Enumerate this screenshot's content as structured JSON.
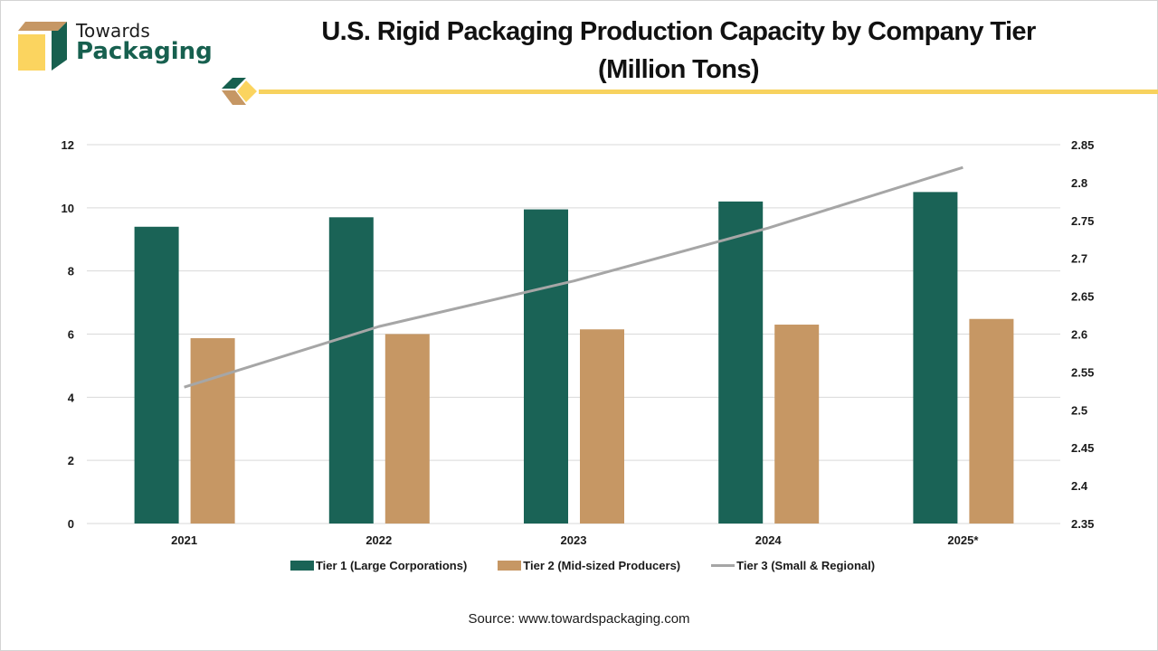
{
  "brand": {
    "name_top": "Towards",
    "name_bottom": "Packaging",
    "colors": {
      "green": "#17604f",
      "tan": "#c69764",
      "yellow": "#f7d25e"
    }
  },
  "source_text": "Source: www.towardspackaging.com",
  "chart_data": {
    "type": "bar",
    "title": "U.S. Rigid Packaging Production Capacity by Company Tier",
    "subtitle": "(Million Tons)",
    "categories": [
      "2021",
      "2022",
      "2023",
      "2024",
      "2025*"
    ],
    "series": [
      {
        "name": "Tier 1 (Large Corporations)",
        "type": "bar",
        "axis": "left",
        "color": "#1a6356",
        "values": [
          9.4,
          9.7,
          9.95,
          10.2,
          10.5
        ]
      },
      {
        "name": "Tier 2 (Mid-sized Producers)",
        "type": "bar",
        "axis": "left",
        "color": "#c69764",
        "values": [
          5.87,
          6.0,
          6.15,
          6.3,
          6.48
        ]
      },
      {
        "name": "Tier 3 (Small & Regional)",
        "type": "line",
        "axis": "right",
        "color": "#a6a6a6",
        "values": [
          2.53,
          2.61,
          2.67,
          2.74,
          2.82
        ]
      }
    ],
    "left_axis": {
      "ylim": [
        0,
        12
      ],
      "ticks": [
        0,
        2,
        4,
        6,
        8,
        10,
        12
      ],
      "tick_labels": [
        "0",
        "2",
        "4",
        "6",
        "8",
        "10",
        "12"
      ]
    },
    "right_axis": {
      "ylim": [
        2.35,
        2.85
      ],
      "ticks": [
        2.35,
        2.4,
        2.45,
        2.5,
        2.55,
        2.6,
        2.65,
        2.7,
        2.75,
        2.8,
        2.85
      ],
      "tick_labels": [
        "2.35",
        "2.4",
        "2.45",
        "2.5",
        "2.55",
        "2.6",
        "2.65",
        "2.7",
        "2.75",
        "2.8",
        "2.85"
      ]
    },
    "xlabel": "",
    "ylabel": "",
    "grid": true,
    "legend_position": "bottom"
  }
}
